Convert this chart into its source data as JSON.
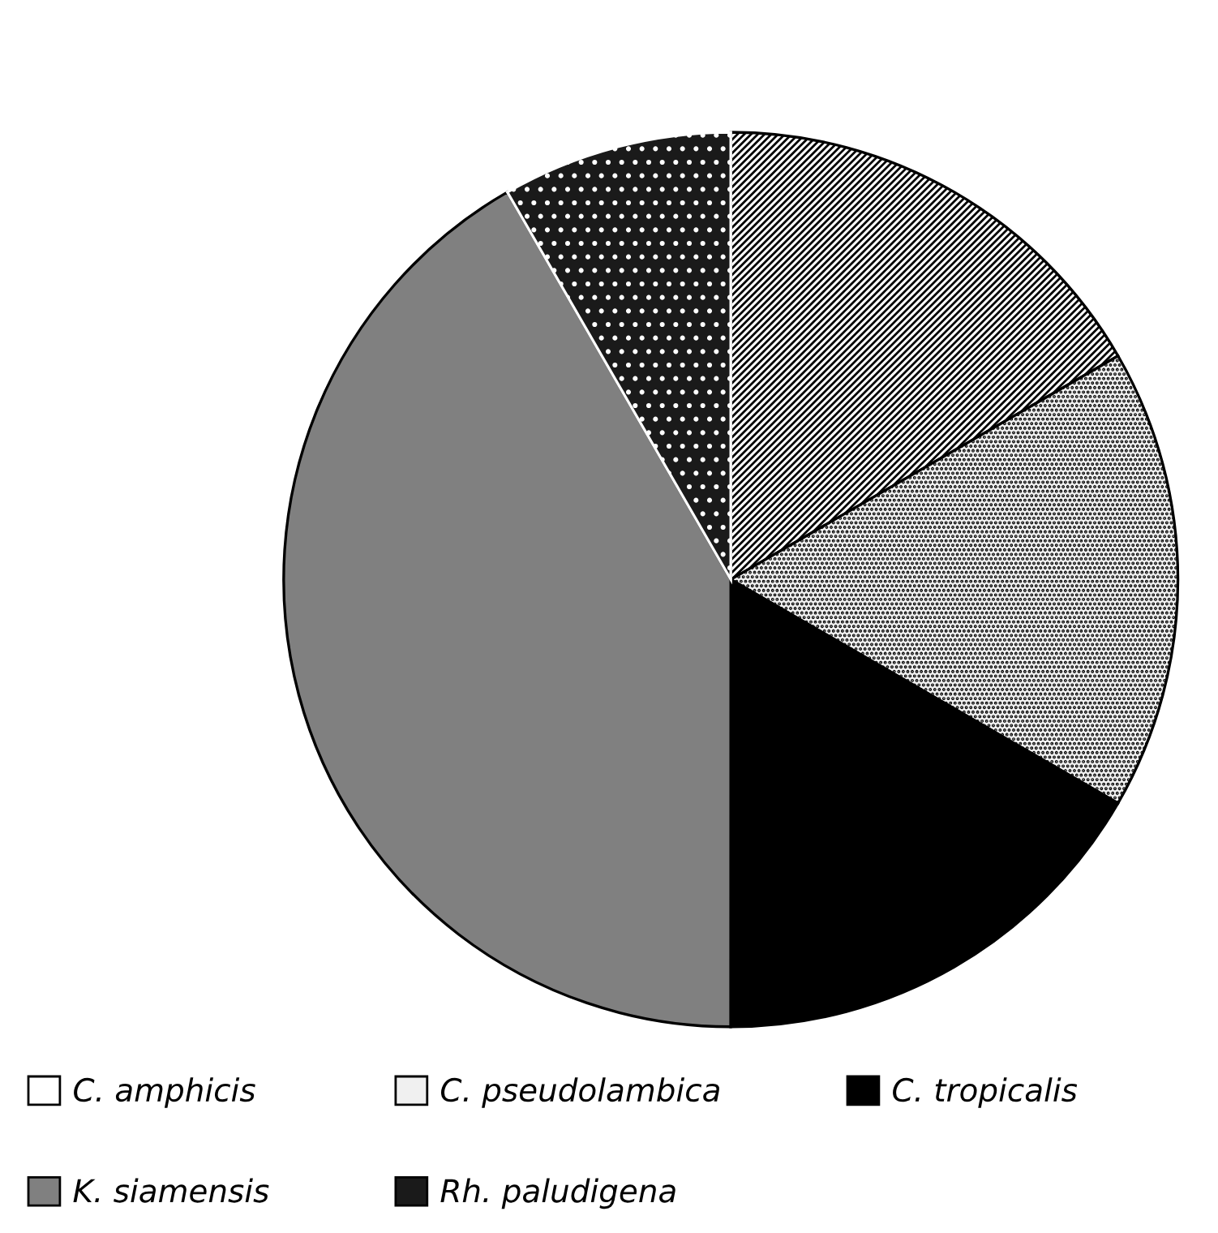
{
  "chart_data": {
    "type": "pie",
    "categories": [
      "C. amphicis",
      "C. pseudolambica",
      "C. tropicalis",
      "K. siamensis",
      "Rh. paludigena"
    ],
    "values": [
      16.67,
      16.67,
      16.67,
      41.67,
      8.33
    ],
    "colors": [
      "#ffffff",
      "#f0f0f0",
      "#000000",
      "#808080",
      "#1a1a1a"
    ],
    "legend": "bottom"
  }
}
